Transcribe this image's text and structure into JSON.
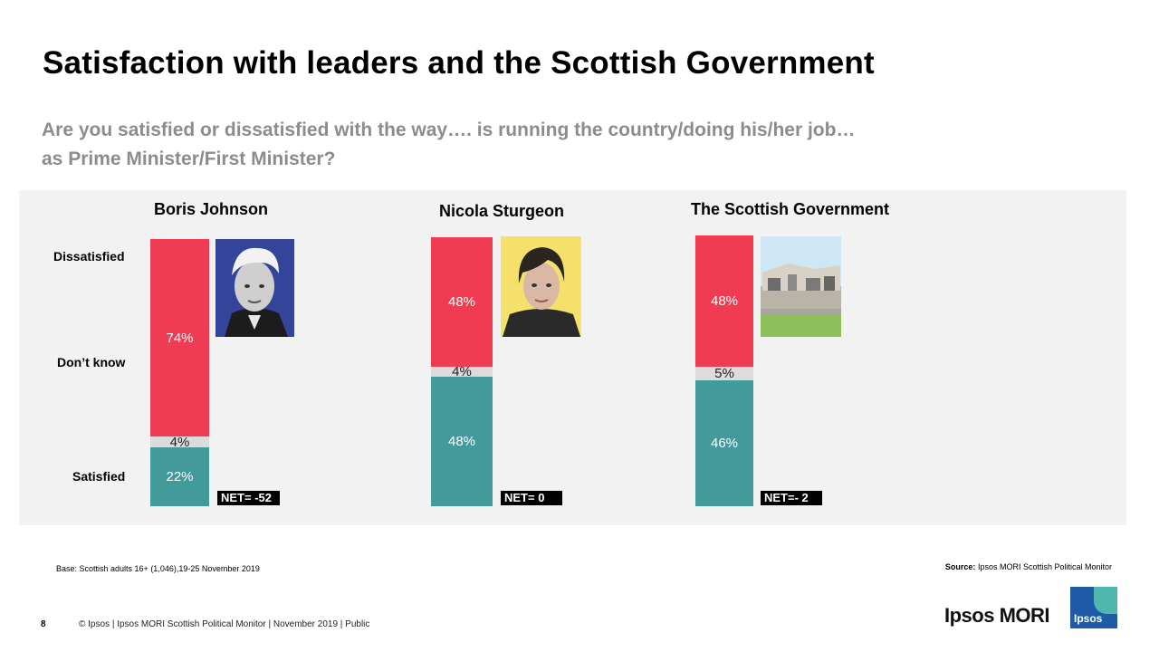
{
  "title": "Satisfaction with leaders and the Scottish Government",
  "subtitle_line1": "Are you satisfied or dissatisfied with the way…. is running the country/doing his/her job…",
  "subtitle_line2": "as Prime Minister/First Minister?",
  "chart_data": {
    "type": "bar",
    "stacked": true,
    "categories": [
      "Boris Johnson",
      "Nicola Sturgeon",
      "The Scottish Government"
    ],
    "row_labels": [
      "Dissatisfied",
      "Don’t know",
      "Satisfied"
    ],
    "series": [
      {
        "name": "Dissatisfied",
        "values": [
          74,
          48,
          48
        ],
        "labels": [
          "74%",
          "48%",
          "48%"
        ],
        "color": "#f03c52"
      },
      {
        "name": "Don’t know",
        "values": [
          4,
          4,
          5
        ],
        "labels": [
          "4%",
          "4%",
          "5%"
        ],
        "color": "#dcdcdc"
      },
      {
        "name": "Satisfied",
        "values": [
          22,
          48,
          46
        ],
        "labels": [
          "22%",
          "48%",
          "46%"
        ],
        "color": "#429a9b"
      }
    ],
    "net_labels": [
      "NET= -52",
      "NET= 0",
      "NET=- 2"
    ],
    "ylim": [
      0,
      100
    ]
  },
  "base_note": "Base: Scottish adults 16+ (1,046),19-25 November 2019",
  "source_label": "Source:",
  "source_text": " Ipsos MORI Scottish Political Monitor",
  "page_number": "8",
  "footer": "© Ipsos | Ipsos MORI  Scottish Political Monitor | November 2019 | Public",
  "brand": "Ipsos MORI",
  "logo_text": "Ipsos",
  "photos": [
    "boris-johnson-photo",
    "nicola-sturgeon-photo",
    "scottish-parliament-photo"
  ]
}
